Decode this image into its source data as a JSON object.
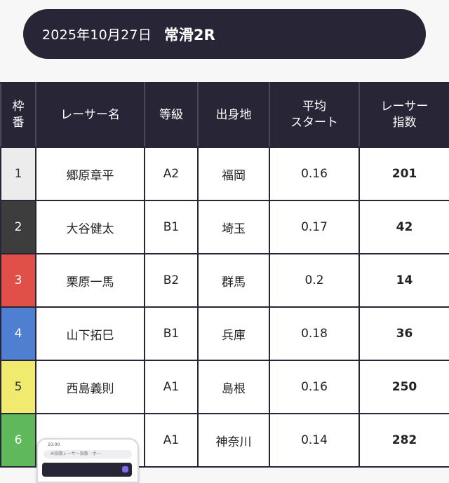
{
  "header": {
    "date": "2025年10月27日",
    "race": "常滑2R"
  },
  "table": {
    "headers": {
      "frame_line1": "枠",
      "frame_line2": "番",
      "name": "レーサー名",
      "grade": "等級",
      "hometown": "出身地",
      "avg_start_line1": "平均",
      "avg_start_line2": "スタート",
      "index_line1": "レーサー",
      "index_line2": "指数"
    },
    "rows": [
      {
        "frame": "1",
        "name": "郷原章平",
        "grade": "A2",
        "hometown": "福岡",
        "avg_start": "0.16",
        "index": "201",
        "frame_color": "#ececec",
        "frame_text_color": "#333333"
      },
      {
        "frame": "2",
        "name": "大谷健太",
        "grade": "B1",
        "hometown": "埼玉",
        "avg_start": "0.17",
        "index": "42",
        "frame_color": "#3d3d3d",
        "frame_text_color": "#ffffff"
      },
      {
        "frame": "3",
        "name": "栗原一馬",
        "grade": "B2",
        "hometown": "群馬",
        "avg_start": "0.2",
        "index": "14",
        "frame_color": "#e05048",
        "frame_text_color": "#ffffff"
      },
      {
        "frame": "4",
        "name": "山下拓巳",
        "grade": "B1",
        "hometown": "兵庫",
        "avg_start": "0.18",
        "index": "36",
        "frame_color": "#4e7fd0",
        "frame_text_color": "#ffffff"
      },
      {
        "frame": "5",
        "name": "西島義則",
        "grade": "A1",
        "hometown": "島根",
        "avg_start": "0.16",
        "index": "250",
        "frame_color": "#f0ea6e",
        "frame_text_color": "#333333"
      },
      {
        "frame": "6",
        "name": "",
        "grade": "A1",
        "hometown": "神奈川",
        "avg_start": "0.14",
        "index": "282",
        "frame_color": "#5fb85a",
        "frame_text_color": "#ffffff"
      }
    ]
  },
  "overlay": {
    "status_time": "10:00",
    "url_text": "AI指数レーサー指数 - ボー"
  }
}
